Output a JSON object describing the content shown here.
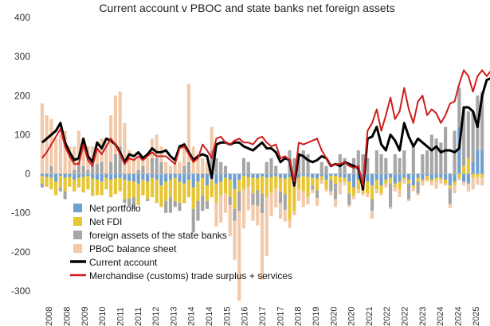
{
  "chart_data": {
    "type": "bar",
    "title": "Current account v PBOC and state banks net foreign assets",
    "xlabel": "",
    "ylabel": "",
    "ylim": [
      -300,
      400
    ],
    "yticks": [
      -300,
      -200,
      -100,
      0,
      100,
      200,
      300,
      400
    ],
    "grid": false,
    "legend_position": "bottom-left",
    "x_tick_labels": [
      "2008",
      "2008",
      "2009",
      "2010",
      "2011",
      "2011",
      "2012",
      "2013",
      "2014",
      "2014",
      "2015",
      "2016",
      "2017",
      "2017",
      "2018",
      "2019",
      "2020",
      "2020",
      "2021",
      "2022",
      "2022",
      "2023",
      "2024",
      "2024",
      "2025"
    ],
    "series": [
      {
        "name": "Net portfolio",
        "kind": "bar",
        "color": "#6f9fd1",
        "values": [
          -5,
          -8,
          -10,
          -20,
          -5,
          -10,
          -8,
          -15,
          -10,
          -8,
          -5,
          -12,
          -15,
          -20,
          -10,
          -15,
          -12,
          -10,
          -15,
          -18,
          -20,
          -25,
          -15,
          -20,
          -10,
          -15,
          -30,
          -20,
          -15,
          -10,
          -20,
          -25,
          -15,
          -35,
          -20,
          -10,
          -30,
          -15,
          -25,
          -20,
          -10,
          -15,
          -40,
          -15,
          -5,
          -8,
          -10,
          -12,
          -6,
          -10,
          -8,
          -6,
          -10,
          -12,
          -8,
          -6,
          -10,
          -5,
          -8,
          -10,
          -12,
          -6,
          -15,
          -5,
          -5,
          -8,
          -10,
          -20,
          -35,
          -15,
          -10,
          -20,
          -30,
          -15,
          -30,
          -15,
          -10,
          -25,
          -20,
          -10,
          -15,
          -30,
          -10,
          -15,
          -5,
          -15,
          -10,
          -10,
          -15,
          -30,
          -20,
          120,
          -20,
          -25,
          30,
          60,
          60
        ]
      },
      {
        "name": "Net FDI",
        "kind": "bar",
        "color": "#e8c532",
        "values": [
          -20,
          -25,
          -30,
          -35,
          -30,
          -35,
          -25,
          -30,
          -25,
          -40,
          -35,
          -45,
          -40,
          -35,
          -30,
          -45,
          -40,
          -35,
          -50,
          -45,
          -40,
          -55,
          -40,
          -45,
          -50,
          -60,
          -55,
          -50,
          -45,
          -60,
          -55,
          -50,
          -45,
          -55,
          -50,
          -45,
          -40,
          -45,
          -50,
          -35,
          -40,
          -45,
          -50,
          -30,
          -35,
          -25,
          -40,
          -30,
          -45,
          -50,
          -40,
          -30,
          -35,
          -40,
          -110,
          -90,
          -30,
          -40,
          -50,
          -20,
          -30,
          -10,
          -25,
          -10,
          -20,
          -15,
          -10,
          -30,
          -20,
          -25,
          -40,
          -30,
          -35,
          -25,
          -20,
          -10,
          -15,
          -10,
          -20,
          -5,
          -10,
          -5,
          -10,
          -5,
          -10,
          -5,
          -8,
          -5,
          -10,
          -8,
          -10,
          -12,
          20,
          40,
          -10,
          -8,
          -10
        ]
      },
      {
        "name": "foreign assets of the state banks",
        "kind": "bar",
        "color": "#a6a6a6",
        "values": [
          -10,
          0,
          20,
          0,
          -10,
          -20,
          0,
          10,
          30,
          20,
          10,
          20,
          25,
          30,
          0,
          30,
          50,
          70,
          -10,
          -20,
          -30,
          10,
          20,
          -5,
          40,
          40,
          30,
          -30,
          -40,
          -15,
          -20,
          20,
          30,
          -60,
          -50,
          -40,
          -20,
          60,
          40,
          30,
          20,
          -20,
          -30,
          -50,
          40,
          30,
          -30,
          -40,
          -50,
          30,
          40,
          20,
          -30,
          -40,
          60,
          40,
          50,
          60,
          50,
          -10,
          -20,
          30,
          20,
          -30,
          -40,
          50,
          40,
          -30,
          40,
          60,
          50,
          40,
          -30,
          60,
          50,
          40,
          -60,
          50,
          40,
          60,
          -40,
          70,
          -30,
          50,
          60,
          100,
          90,
          80,
          120,
          -40,
          110,
          100,
          150,
          120,
          130,
          140,
          150
        ]
      },
      {
        "name": "PBoC balance sheet",
        "kind": "bar",
        "color": "#f2c9a9",
        "values": [
          180,
          150,
          120,
          90,
          100,
          110,
          70,
          60,
          80,
          70,
          60,
          50,
          40,
          60,
          80,
          120,
          150,
          140,
          130,
          60,
          40,
          30,
          20,
          40,
          50,
          60,
          40,
          30,
          20,
          25,
          30,
          60,
          200,
          70,
          50,
          40,
          30,
          60,
          -60,
          -70,
          -50,
          -80,
          -100,
          -230,
          -100,
          -60,
          -40,
          -50,
          -170,
          -150,
          -60,
          -50,
          -40,
          -30,
          -20,
          -10,
          -30,
          -40,
          -20,
          -10,
          -20,
          -10,
          -5,
          -10,
          -20,
          -30,
          -10,
          -5,
          -10,
          -10,
          -5,
          -10,
          -20,
          -10,
          -5,
          -10,
          -5,
          -10,
          -20,
          -10,
          -5,
          -10,
          -5,
          -10,
          -5,
          -10,
          -20,
          -10,
          -5,
          -10,
          -20,
          -5,
          -10,
          -20,
          -30,
          -20,
          -20
        ]
      },
      {
        "name": "Current account",
        "kind": "line",
        "color": "#000000",
        "values": [
          80,
          90,
          100,
          110,
          130,
          80,
          55,
          35,
          40,
          90,
          45,
          30,
          80,
          65,
          90,
          85,
          75,
          55,
          30,
          50,
          45,
          55,
          40,
          50,
          65,
          55,
          55,
          60,
          45,
          35,
          70,
          75,
          55,
          35,
          45,
          50,
          45,
          -10,
          75,
          80,
          80,
          75,
          80,
          80,
          70,
          65,
          60,
          70,
          80,
          65,
          65,
          55,
          30,
          40,
          35,
          -30,
          50,
          45,
          35,
          30,
          35,
          45,
          40,
          20,
          25,
          20,
          30,
          25,
          20,
          15,
          -40,
          90,
          95,
          120,
          75,
          60,
          100,
          85,
          60,
          130,
          95,
          70,
          90,
          80,
          70,
          60,
          70,
          55,
          60,
          60,
          55,
          65,
          170,
          170,
          160,
          120,
          200,
          240,
          245
        ]
      },
      {
        "name": "Merchandise (customs) trade surplus + services",
        "kind": "line",
        "color": "#d01c1c",
        "values": [
          40,
          55,
          75,
          95,
          115,
          70,
          45,
          25,
          25,
          75,
          35,
          20,
          65,
          50,
          70,
          90,
          75,
          50,
          25,
          40,
          35,
          45,
          35,
          45,
          55,
          45,
          45,
          45,
          35,
          25,
          65,
          70,
          50,
          30,
          40,
          75,
          60,
          40,
          90,
          95,
          80,
          75,
          85,
          90,
          80,
          80,
          75,
          90,
          95,
          80,
          70,
          75,
          40,
          45,
          35,
          -20,
          80,
          75,
          80,
          85,
          90,
          60,
          40,
          20,
          25,
          25,
          30,
          20,
          15,
          20,
          -30,
          110,
          130,
          165,
          110,
          150,
          195,
          140,
          160,
          220,
          165,
          130,
          185,
          200,
          150,
          165,
          155,
          130,
          150,
          180,
          185,
          230,
          265,
          250,
          210,
          250,
          265,
          250,
          265,
          270
        ]
      }
    ]
  }
}
